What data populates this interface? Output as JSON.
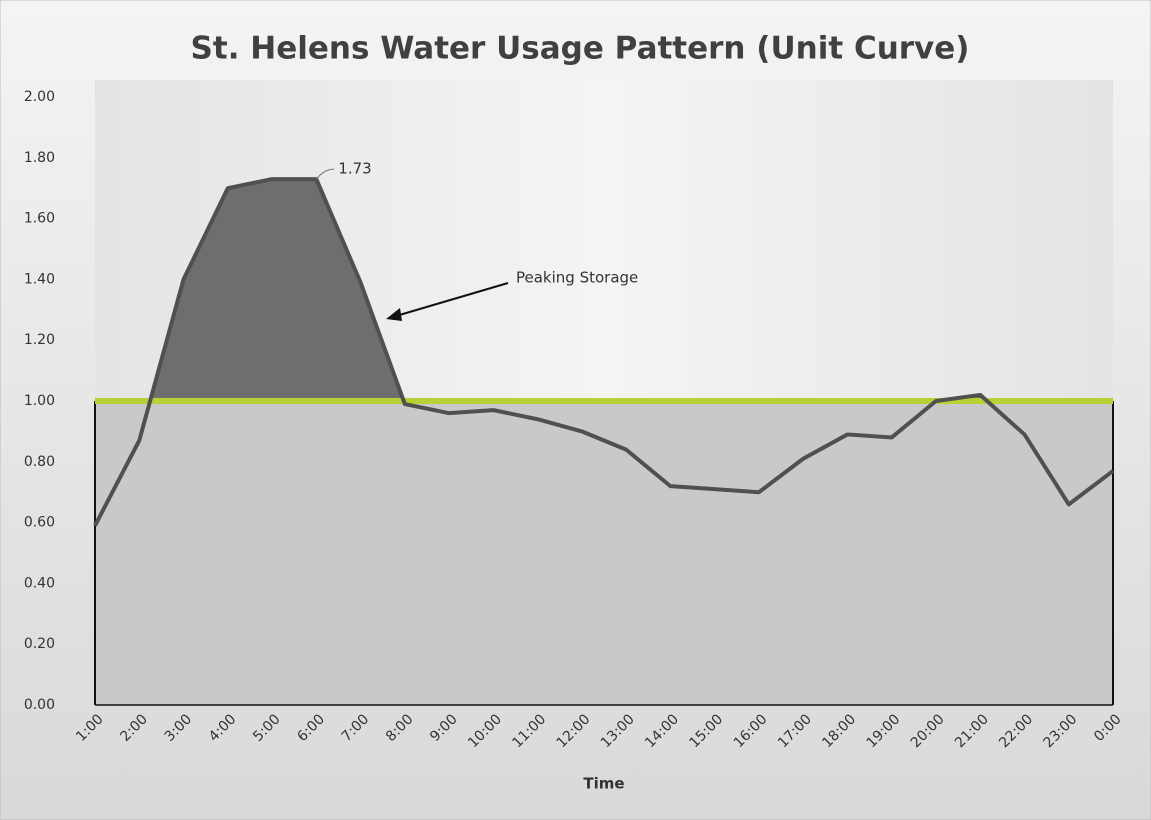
{
  "chart_data": {
    "type": "line",
    "title": "St. Helens Water Usage Pattern (Unit Curve)",
    "x_label": "Time",
    "categories": [
      "1:00",
      "2:00",
      "3:00",
      "4:00",
      "5:00",
      "6:00",
      "7:00",
      "8:00",
      "9:00",
      "10:00",
      "11:00",
      "12:00",
      "13:00",
      "14:00",
      "15:00",
      "16:00",
      "17:00",
      "18:00",
      "19:00",
      "20:00",
      "21:00",
      "22:00",
      "23:00",
      "0:00"
    ],
    "series": [
      {
        "color": "#505050",
        "fill": "#6e6e6e",
        "values": [
          0.59,
          0.87,
          1.4,
          1.7,
          1.73,
          1.73,
          1.39,
          0.99,
          0.96,
          0.97,
          0.94,
          0.9,
          0.84,
          0.72,
          0.71,
          0.7,
          0.81,
          0.89,
          0.88,
          1.0,
          1.02,
          0.89,
          0.66,
          0.77
        ]
      },
      {
        "color": "#b5d334",
        "fill": "#c9c9c9",
        "values": [
          1,
          1,
          1,
          1,
          1,
          1,
          1,
          1,
          1,
          1,
          1,
          1,
          1,
          1,
          1,
          1,
          1,
          1,
          1,
          1,
          1,
          1,
          1,
          1
        ]
      }
    ],
    "data_label_index": 5,
    "annotation": "Peaking Storage",
    "ylim": [
      0,
      2
    ],
    "yticks": [
      {
        "value": 0,
        "label": "0.00"
      },
      {
        "value": 0.2,
        "label": "0.20"
      },
      {
        "value": 0.4,
        "label": "0.40"
      },
      {
        "value": 0.6,
        "label": "0.60"
      },
      {
        "value": 0.8,
        "label": "0.80"
      },
      {
        "value": 1,
        "label": "1.00"
      },
      {
        "value": 1.2,
        "label": "1.20"
      },
      {
        "value": 1.4,
        "label": "1.40"
      },
      {
        "value": 1.6,
        "label": "1.60"
      },
      {
        "value": 1.8,
        "label": "1.80"
      },
      {
        "value": 2,
        "label": "2.00"
      }
    ],
    "grid": false
  }
}
